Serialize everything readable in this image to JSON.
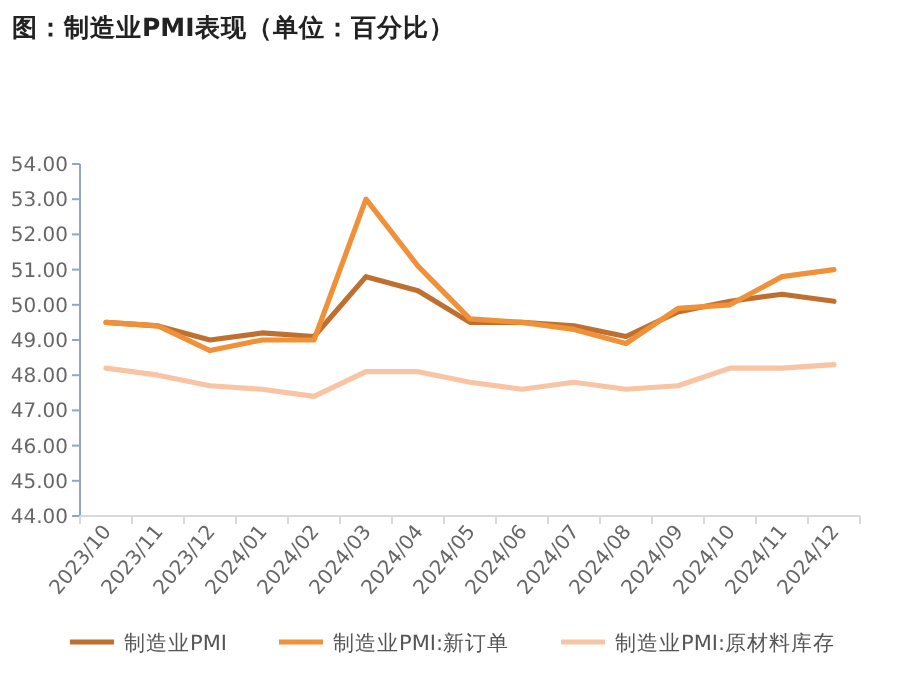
{
  "chart_data": {
    "type": "line",
    "title": "图：制造业PMI表现（单位：百分比）",
    "categories": [
      "2023/10",
      "2023/11",
      "2023/12",
      "2024/01",
      "2024/02",
      "2024/03",
      "2024/04",
      "2024/05",
      "2024/06",
      "2024/07",
      "2024/08",
      "2024/09",
      "2024/10",
      "2024/11",
      "2024/12"
    ],
    "series": [
      {
        "name": "制造业PMI",
        "color": "#c0702e",
        "values": [
          49.5,
          49.4,
          49.0,
          49.2,
          49.1,
          50.8,
          50.4,
          49.5,
          49.5,
          49.4,
          49.1,
          49.8,
          50.1,
          50.3,
          50.1
        ]
      },
      {
        "name": "制造业PMI:新订单",
        "color": "#f0913a",
        "values": [
          49.5,
          49.4,
          48.7,
          49.0,
          49.0,
          53.0,
          51.1,
          49.6,
          49.5,
          49.3,
          48.9,
          49.9,
          50.0,
          50.8,
          51.0
        ]
      },
      {
        "name": "制造业PMI:原材料库存",
        "color": "#f8c4a4",
        "values": [
          48.2,
          48.0,
          47.7,
          47.6,
          47.4,
          48.1,
          48.1,
          47.8,
          47.6,
          47.8,
          47.6,
          47.7,
          48.2,
          48.2,
          48.3
        ]
      }
    ],
    "ylim": [
      44,
      54
    ],
    "yticks": [
      {
        "value": 44,
        "label": "44.00"
      },
      {
        "value": 45,
        "label": "45.00"
      },
      {
        "value": 46,
        "label": "46.00"
      },
      {
        "value": 47,
        "label": "47.00"
      },
      {
        "value": 48,
        "label": "48.00"
      },
      {
        "value": 49,
        "label": "49.00"
      },
      {
        "value": 50,
        "label": "50.00"
      },
      {
        "value": 51,
        "label": "51.00"
      },
      {
        "value": 52,
        "label": "52.00"
      },
      {
        "value": 53,
        "label": "53.00"
      },
      {
        "value": 54,
        "label": "54.00"
      }
    ],
    "grid": false,
    "legend": "bottom",
    "marker": "none",
    "line_style": "solid"
  }
}
